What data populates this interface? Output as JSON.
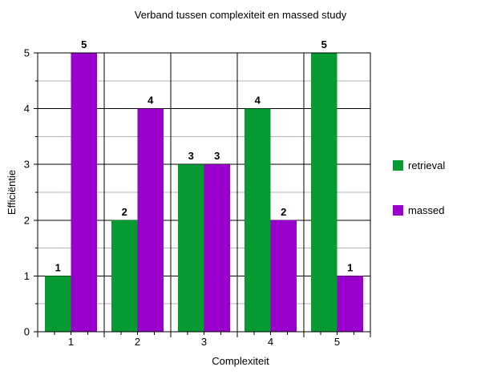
{
  "chart_data": {
    "type": "bar",
    "title": "Verband tussen complexiteit en massed study",
    "xlabel": "Complexiteit",
    "ylabel": "Efficiëntie",
    "categories": [
      "1",
      "2",
      "3",
      "4",
      "5"
    ],
    "ylim": [
      0,
      5
    ],
    "yticks": [
      0,
      1,
      2,
      3,
      4,
      5
    ],
    "grid": true,
    "legend_position": "right",
    "series": [
      {
        "name": "retrieval",
        "values": [
          1,
          2,
          3,
          4,
          5
        ],
        "color": "#079932"
      },
      {
        "name": "massed",
        "values": [
          5,
          4,
          3,
          2,
          1
        ],
        "color": "#9900cc"
      }
    ]
  }
}
